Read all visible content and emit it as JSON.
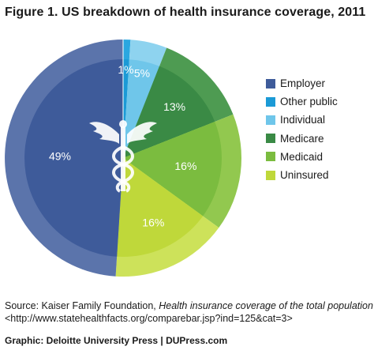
{
  "figure": {
    "title": "Figure 1. US breakdown of health insurance coverage, 2011"
  },
  "chart_data": {
    "type": "pie",
    "categories": [
      "Employer",
      "Other public",
      "Individual",
      "Medicare",
      "Medicaid",
      "Uninsured"
    ],
    "values": [
      49,
      1,
      5,
      13,
      16,
      16
    ],
    "data_labels": [
      "49%",
      "1%",
      "5%",
      "13%",
      "16%",
      "16%"
    ],
    "colors": [
      "#3e5b9a",
      "#1b9ad6",
      "#6fc6ea",
      "#3a8a45",
      "#7bbc3f",
      "#bfd83a"
    ],
    "ring_colors": [
      "#5b74ab",
      "#2aa7e0",
      "#8ed3ef",
      "#4e9b52",
      "#92c84f",
      "#cde25a"
    ],
    "title": "",
    "legend_position": "right",
    "center_icon": "caduceus-icon"
  },
  "legend": {
    "items": [
      {
        "label": "Employer",
        "color": "#3e5b9a"
      },
      {
        "label": "Other public",
        "color": "#1b9ad6"
      },
      {
        "label": "Individual",
        "color": "#6fc6ea"
      },
      {
        "label": "Medicare",
        "color": "#3a8a45"
      },
      {
        "label": "Medicaid",
        "color": "#7bbc3f"
      },
      {
        "label": "Uninsured",
        "color": "#bfd83a"
      }
    ]
  },
  "source": {
    "prefix": "Source: Kaiser Family Foundation, ",
    "italic": "Health insurance coverage of the total population",
    "url": "<http://www.statehealthfacts.org/comparebar.jsp?ind=125&cat=3>"
  },
  "credit": {
    "text": "Graphic: Deloitte University Press  |  DUPress.com"
  }
}
